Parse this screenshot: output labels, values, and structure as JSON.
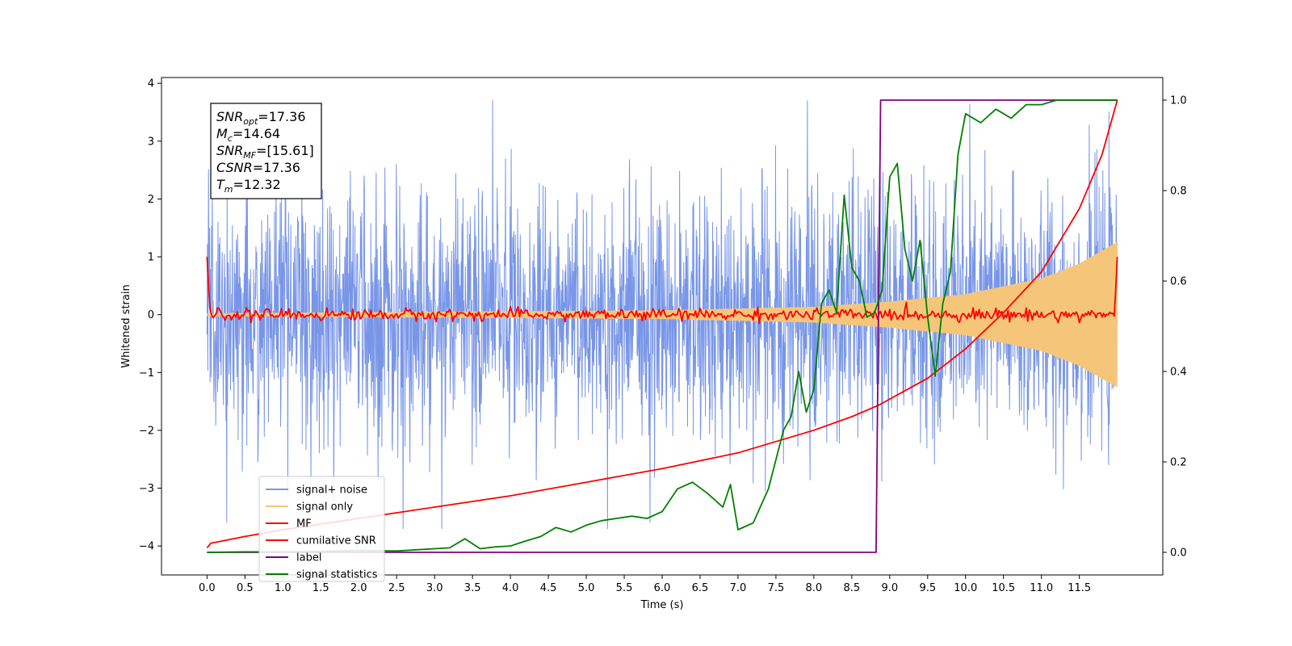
{
  "chart_data": {
    "type": "line",
    "xlabel": "Time (s)",
    "ylabel": "Whitened strain",
    "xlim": [
      -0.6,
      12.6
    ],
    "ylim": [
      -4.5,
      4.1
    ],
    "y2lim": [
      -0.05,
      1.05
    ],
    "x_ticks": [
      0.0,
      0.5,
      1.0,
      1.5,
      2.0,
      2.5,
      3.0,
      3.5,
      4.0,
      4.5,
      5.0,
      5.5,
      6.0,
      6.5,
      7.0,
      7.5,
      8.0,
      8.5,
      9.0,
      9.5,
      10.0,
      10.5,
      11.0,
      11.5
    ],
    "x_tick_labels": [
      "0.0",
      "0.5",
      "1.0",
      "1.5",
      "2.0",
      "2.5",
      "3.0",
      "3.5",
      "4.0",
      "4.5",
      "5.0",
      "5.5",
      "6.0",
      "6.5",
      "7.0",
      "7.5",
      "8.0",
      "8.5",
      "9.0",
      "9.5",
      "10.0",
      "10.5",
      "11.0",
      "11.5"
    ],
    "y_ticks": [
      -4,
      -3,
      -2,
      -1,
      0,
      1,
      2,
      3,
      4
    ],
    "y_tick_labels": [
      "−4",
      "−3",
      "−2",
      "−1",
      "0",
      "1",
      "2",
      "3",
      "4"
    ],
    "y2_ticks": [
      0.0,
      0.2,
      0.4,
      0.6,
      0.8,
      1.0
    ],
    "y2_tick_labels": [
      "0.0",
      "0.2",
      "0.4",
      "0.6",
      "0.8",
      "1.0"
    ],
    "legend_position": "lower-left",
    "info_box": {
      "position": "top-left",
      "lines": [
        {
          "sym": "SNR",
          "sub": "opt",
          "value": "=17.36"
        },
        {
          "sym": "M",
          "sub": "c",
          "value": "=14.64"
        },
        {
          "sym": "SNR",
          "sub": "MF",
          "value": "=[15.61]"
        },
        {
          "sym": "CSNR",
          "sub": "",
          "value": "=17.36"
        },
        {
          "sym": "T",
          "sub": "m",
          "value": "=12.32"
        }
      ]
    },
    "series": [
      {
        "name": "signal+ noise",
        "color": "#7895e8",
        "axis": "left",
        "kind": "noise_band",
        "x_range": [
          0.0,
          12.0
        ],
        "std": 1.1,
        "min": -3.7,
        "max": 3.7
      },
      {
        "name": "signal only",
        "color": "#f5c67a",
        "axis": "left",
        "kind": "chirp",
        "x_range": [
          0.0,
          12.0
        ],
        "amplitude_at": [
          [
            0.0,
            0.02
          ],
          [
            6.0,
            0.07
          ],
          [
            8.0,
            0.13
          ],
          [
            9.0,
            0.22
          ],
          [
            10.0,
            0.35
          ],
          [
            11.0,
            0.62
          ],
          [
            11.5,
            0.88
          ],
          [
            12.0,
            1.25
          ]
        ]
      },
      {
        "name": "MF",
        "color": "#ff0000",
        "axis": "left",
        "kind": "mf_trace",
        "x_range": [
          0.0,
          12.0
        ],
        "start": 1.0,
        "end": 1.0,
        "noise": 0.05
      },
      {
        "name": "cumilative SNR",
        "color": "#ff0000",
        "axis": "right",
        "x": [
          0.0,
          0.05,
          0.5,
          1.0,
          2.0,
          3.0,
          4.0,
          5.0,
          6.0,
          7.0,
          7.5,
          8.0,
          8.5,
          8.85,
          9.5,
          10.0,
          10.5,
          11.0,
          11.5,
          11.8,
          12.0
        ],
        "y": [
          0.01,
          0.02,
          0.035,
          0.05,
          0.075,
          0.1,
          0.125,
          0.155,
          0.185,
          0.22,
          0.245,
          0.27,
          0.3,
          0.325,
          0.385,
          0.45,
          0.53,
          0.62,
          0.76,
          0.88,
          1.0
        ]
      },
      {
        "name": "label",
        "color": "#800080",
        "axis": "right",
        "x": [
          0.0,
          8.82,
          8.88,
          12.0
        ],
        "y": [
          0.0,
          0.0,
          1.0,
          1.0
        ]
      },
      {
        "name": "signal statistics",
        "color": "#008000",
        "axis": "right",
        "x": [
          0.0,
          0.5,
          1.0,
          1.5,
          2.0,
          2.5,
          3.0,
          3.2,
          3.4,
          3.6,
          3.8,
          4.0,
          4.2,
          4.4,
          4.6,
          4.8,
          5.0,
          5.2,
          5.4,
          5.6,
          5.8,
          6.0,
          6.2,
          6.4,
          6.6,
          6.8,
          6.9,
          7.0,
          7.2,
          7.4,
          7.6,
          7.7,
          7.8,
          7.9,
          8.0,
          8.1,
          8.2,
          8.3,
          8.4,
          8.5,
          8.6,
          8.7,
          8.8,
          8.9,
          9.0,
          9.1,
          9.2,
          9.3,
          9.4,
          9.5,
          9.6,
          9.7,
          9.8,
          9.9,
          10.0,
          10.2,
          10.4,
          10.6,
          10.8,
          11.0,
          11.2,
          11.5,
          12.0
        ],
        "y": [
          0.0,
          0.001,
          0.001,
          0.002,
          0.004,
          0.003,
          0.008,
          0.01,
          0.03,
          0.008,
          0.012,
          0.014,
          0.025,
          0.035,
          0.055,
          0.045,
          0.06,
          0.07,
          0.075,
          0.08,
          0.075,
          0.09,
          0.14,
          0.155,
          0.13,
          0.1,
          0.15,
          0.05,
          0.065,
          0.14,
          0.27,
          0.3,
          0.4,
          0.31,
          0.36,
          0.55,
          0.58,
          0.53,
          0.79,
          0.63,
          0.6,
          0.52,
          0.53,
          0.58,
          0.83,
          0.86,
          0.67,
          0.6,
          0.69,
          0.52,
          0.39,
          0.55,
          0.62,
          0.88,
          0.97,
          0.95,
          0.98,
          0.96,
          0.99,
          0.99,
          1.0,
          1.0,
          1.0
        ]
      }
    ]
  }
}
